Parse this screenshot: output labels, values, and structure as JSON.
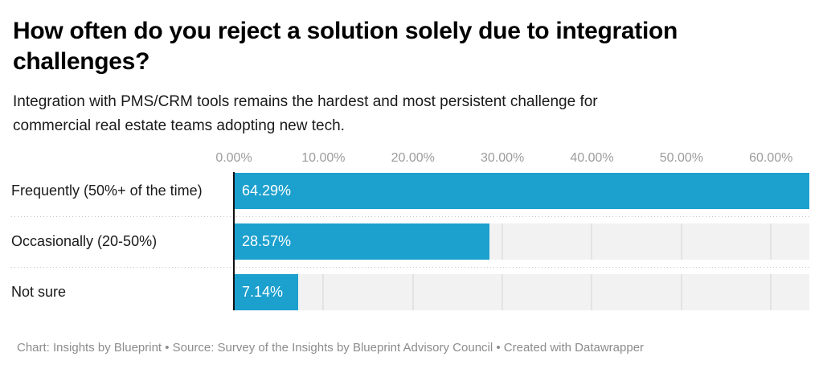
{
  "header": {
    "title_line1": "How often do you reject a solution solely due to integration",
    "title_line2": "challenges?",
    "subtitle_line1": "Integration with PMS/CRM tools remains the hardest and most persistent challenge for",
    "subtitle_line2": "commercial real estate teams adopting new tech."
  },
  "chart_data": {
    "type": "bar",
    "orientation": "horizontal",
    "title": "How often do you reject a solution solely due to integration challenges?",
    "subtitle": "Integration with PMS/CRM tools remains the hardest and most persistent challenge for commercial real estate teams adopting new tech.",
    "categories": [
      "Frequently (50%+ of the time)",
      "Occasionally (20-50%)",
      "Not sure"
    ],
    "values": [
      64.29,
      28.57,
      7.14
    ],
    "value_labels": [
      "64.29%",
      "28.57%",
      "7.14%"
    ],
    "x_ticks": [
      0,
      10,
      20,
      30,
      40,
      50,
      60
    ],
    "x_tick_labels": [
      "0.00%",
      "10.00%",
      "20.00%",
      "30.00%",
      "40.00%",
      "50.00%",
      "60.00%"
    ],
    "x_max": 64.29,
    "xlabel": "",
    "ylabel": "",
    "grid": true,
    "legend": "none",
    "bar_color": "#1ca0ce",
    "track_color": "#f2f2f2",
    "grid_color": "#e3e3e3",
    "axis_color": "#111111"
  },
  "footer": {
    "credit": "Chart: Insights by Blueprint • Source: Survey of the Insights by Blueprint Advisory Council • Created with Datawrapper"
  }
}
